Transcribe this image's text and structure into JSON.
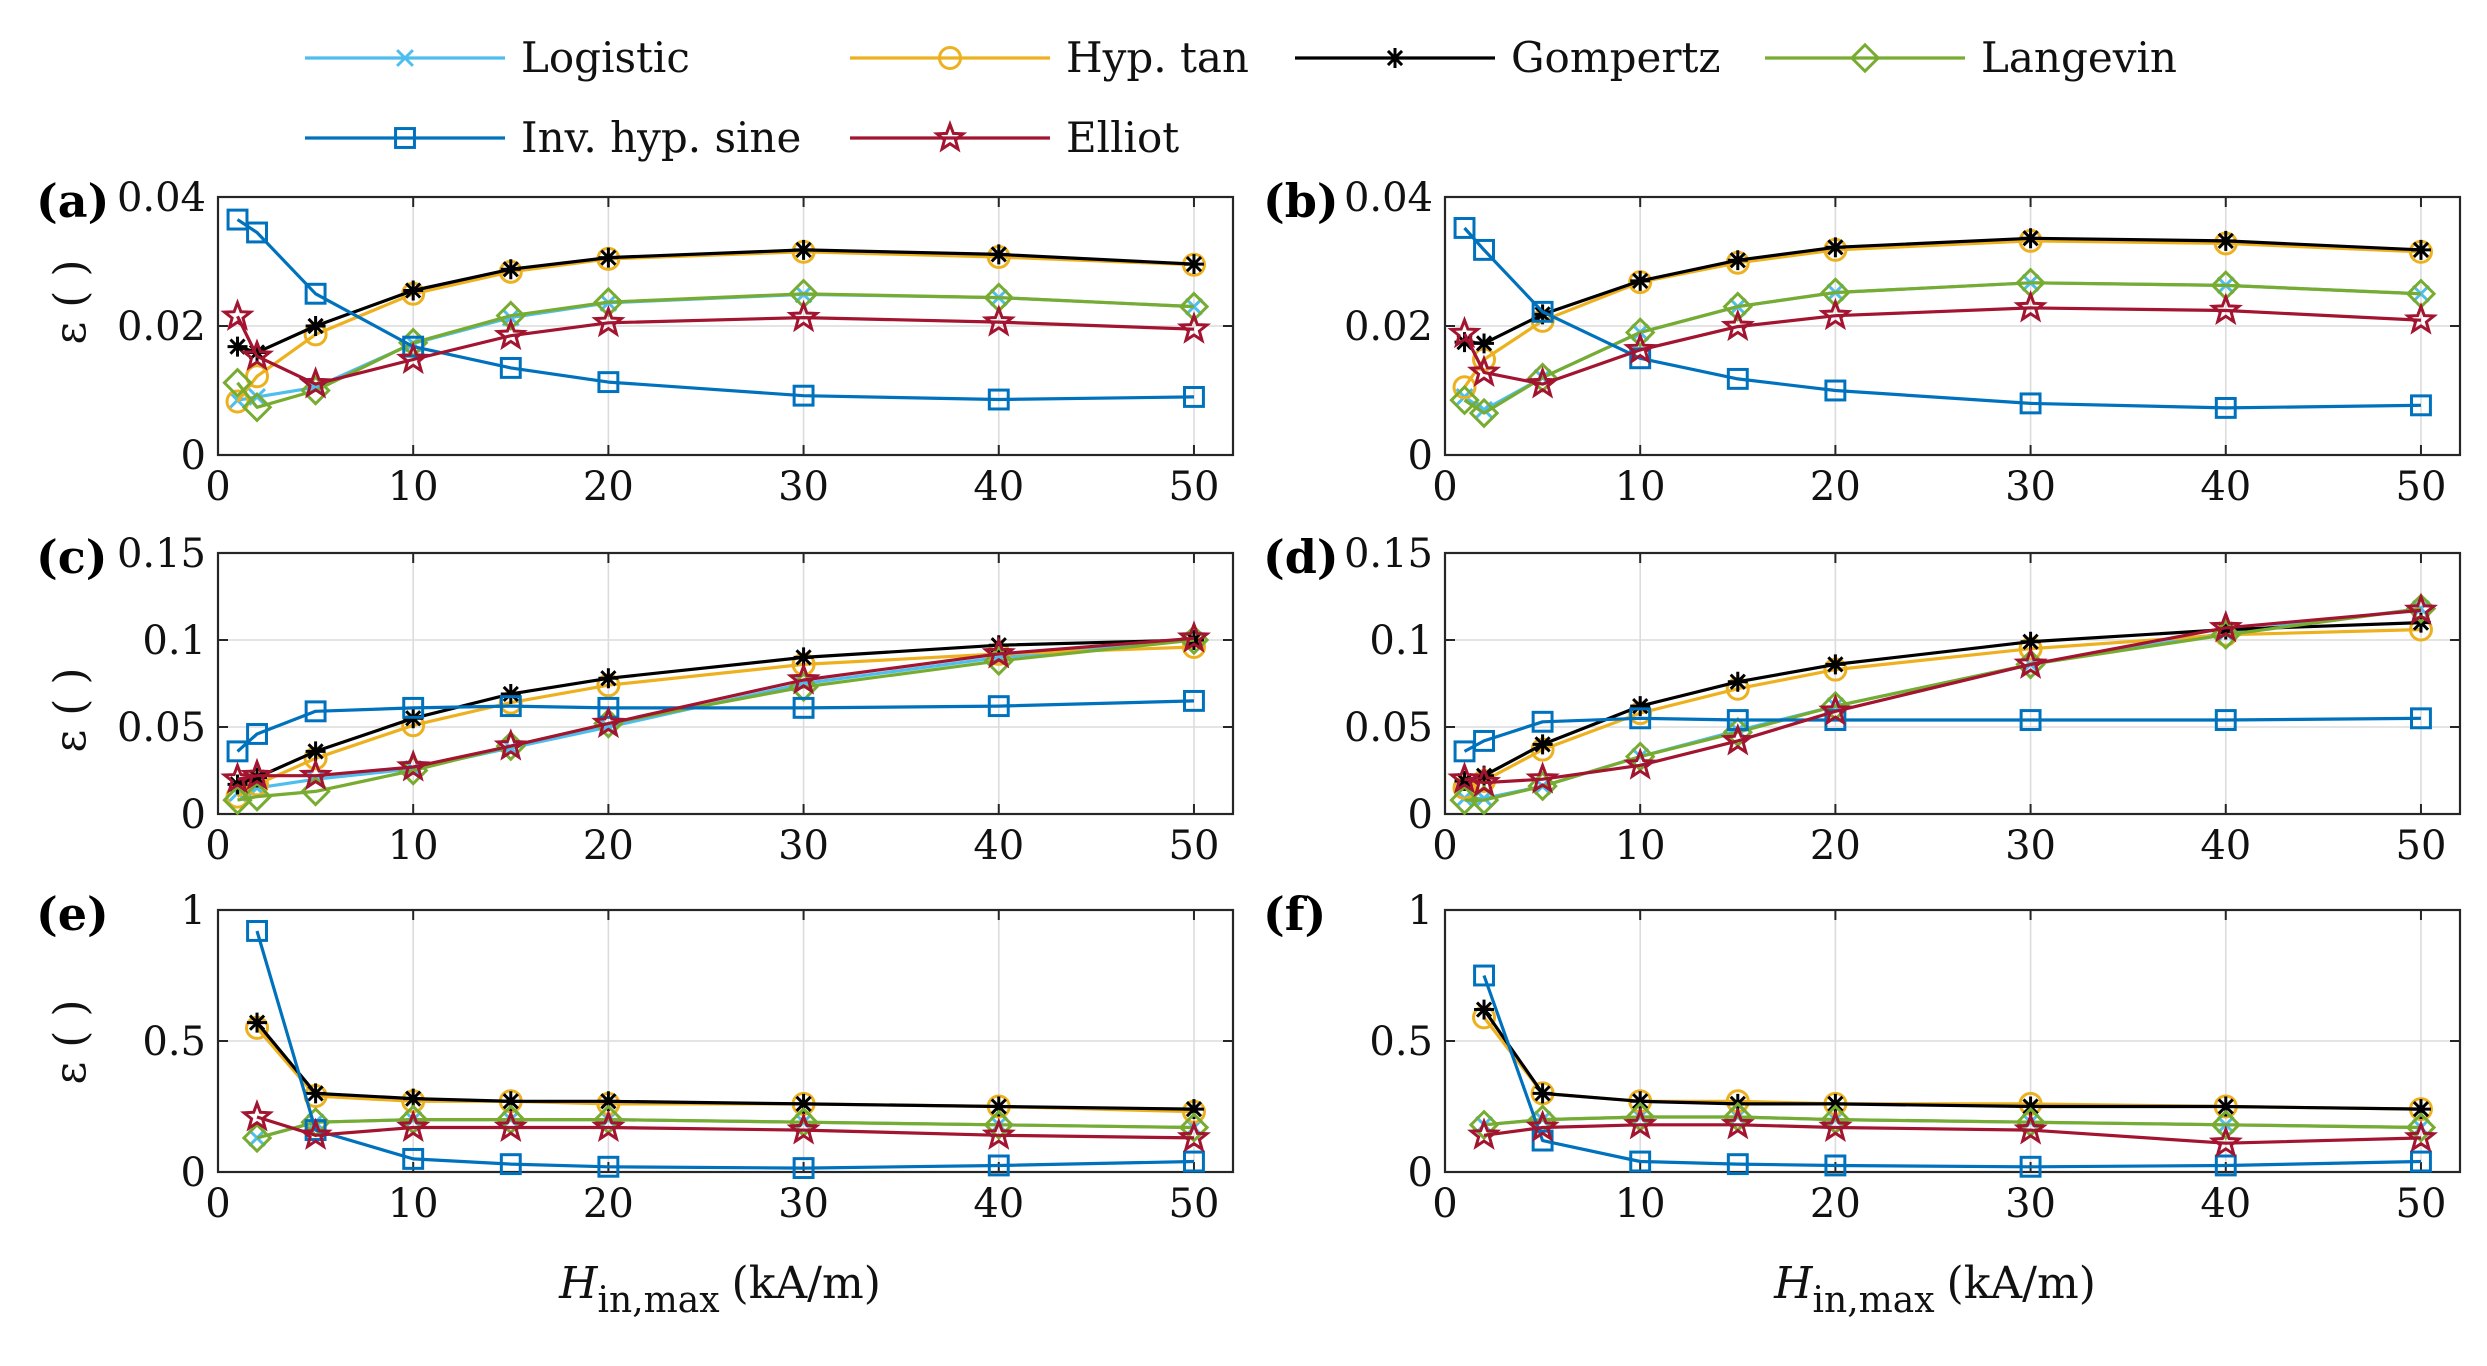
{
  "legend": [
    {
      "name": "Logistic",
      "color": "#4DBEEE",
      "marker": "x-icon"
    },
    {
      "name": "Hyp. tan",
      "color": "#EDB120",
      "marker": "circle-icon"
    },
    {
      "name": "Gompertz",
      "color": "#000000",
      "marker": "asterisk-icon"
    },
    {
      "name": "Langevin",
      "color": "#77AC30",
      "marker": "diamond-icon"
    },
    {
      "name": "Inv. hyp. sine",
      "color": "#0072BD",
      "marker": "square-icon"
    },
    {
      "name": "Elliot",
      "color": "#A2142F",
      "marker": "pentagram-icon"
    }
  ],
  "x_axis_title": {
    "main": "H",
    "sub": "in,max",
    "unit": "(kA/m)"
  },
  "y_axis_title": "ε ( )",
  "chart_data": [
    {
      "panel": "(a)",
      "type": "line",
      "xlim": [
        0,
        52
      ],
      "ylim": [
        0,
        0.04
      ],
      "xticks": [
        "0",
        "10",
        "20",
        "30",
        "40",
        "50"
      ],
      "yticks": [
        "0",
        "0.02",
        "0.04"
      ],
      "series": [
        {
          "name": "Logistic",
          "x": [
            1,
            2,
            5,
            10,
            15,
            20,
            30,
            40,
            50
          ],
          "y": [
            0.0085,
            0.009,
            0.0105,
            0.0173,
            0.0213,
            0.0236,
            0.0249,
            0.0244,
            0.023
          ]
        },
        {
          "name": "Hyp. tan",
          "x": [
            1,
            2,
            5,
            10,
            15,
            20,
            30,
            40,
            50
          ],
          "y": [
            0.0083,
            0.0122,
            0.0187,
            0.025,
            0.0284,
            0.0304,
            0.0315,
            0.0307,
            0.0295
          ]
        },
        {
          "name": "Gompertz",
          "x": [
            1,
            2,
            5,
            10,
            15,
            20,
            30,
            40,
            50
          ],
          "y": [
            0.0168,
            0.0159,
            0.02,
            0.0255,
            0.0288,
            0.0306,
            0.0318,
            0.0311,
            0.0296
          ]
        },
        {
          "name": "Langevin",
          "x": [
            1,
            2,
            5,
            10,
            15,
            20,
            30,
            40,
            50
          ],
          "y": [
            0.0112,
            0.0074,
            0.01,
            0.0174,
            0.0216,
            0.0237,
            0.025,
            0.0244,
            0.023
          ]
        },
        {
          "name": "Inv. hyp. sine",
          "x": [
            1,
            2,
            5,
            10,
            15,
            20,
            30,
            40,
            50
          ],
          "y": [
            0.0365,
            0.0345,
            0.025,
            0.0168,
            0.0135,
            0.0113,
            0.0092,
            0.0086,
            0.009
          ]
        },
        {
          "name": "Elliot",
          "x": [
            1,
            2,
            5,
            10,
            15,
            20,
            30,
            40,
            50
          ],
          "y": [
            0.0215,
            0.0153,
            0.011,
            0.0148,
            0.0185,
            0.0205,
            0.0213,
            0.0206,
            0.0195
          ]
        }
      ]
    },
    {
      "panel": "(b)",
      "type": "line",
      "xlim": [
        0,
        52
      ],
      "ylim": [
        0,
        0.04
      ],
      "xticks": [
        "0",
        "10",
        "20",
        "30",
        "40",
        "50"
      ],
      "yticks": [
        "0",
        "0.02",
        "0.04"
      ],
      "series": [
        {
          "name": "Logistic",
          "x": [
            1,
            2,
            5,
            10,
            15,
            20,
            30,
            40,
            50
          ],
          "y": [
            0.009,
            0.007,
            0.012,
            0.019,
            0.023,
            0.0252,
            0.0267,
            0.0263,
            0.025
          ]
        },
        {
          "name": "Hyp. tan",
          "x": [
            1,
            2,
            5,
            10,
            15,
            20,
            30,
            40,
            50
          ],
          "y": [
            0.0105,
            0.0148,
            0.0208,
            0.0268,
            0.0298,
            0.0318,
            0.0332,
            0.0328,
            0.0315
          ]
        },
        {
          "name": "Gompertz",
          "x": [
            1,
            2,
            5,
            10,
            15,
            20,
            30,
            40,
            50
          ],
          "y": [
            0.0175,
            0.0173,
            0.0218,
            0.027,
            0.0302,
            0.0322,
            0.0336,
            0.0332,
            0.0318
          ]
        },
        {
          "name": "Langevin",
          "x": [
            1,
            2,
            5,
            10,
            15,
            20,
            30,
            40,
            50
          ],
          "y": [
            0.0085,
            0.0065,
            0.012,
            0.019,
            0.023,
            0.0252,
            0.0267,
            0.0263,
            0.025
          ]
        },
        {
          "name": "Inv. hyp. sine",
          "x": [
            1,
            2,
            5,
            10,
            15,
            20,
            30,
            40,
            50
          ],
          "y": [
            0.0352,
            0.0318,
            0.0222,
            0.015,
            0.0118,
            0.01,
            0.008,
            0.0073,
            0.0077
          ]
        },
        {
          "name": "Elliot",
          "x": [
            1,
            2,
            5,
            10,
            15,
            20,
            30,
            40,
            50
          ],
          "y": [
            0.0188,
            0.0128,
            0.011,
            0.0163,
            0.0199,
            0.0216,
            0.0228,
            0.0224,
            0.0209
          ]
        }
      ]
    },
    {
      "panel": "(c)",
      "type": "line",
      "xlim": [
        0,
        52
      ],
      "ylim": [
        0,
        0.15
      ],
      "xticks": [
        "0",
        "10",
        "20",
        "30",
        "40",
        "50"
      ],
      "yticks": [
        "0",
        "0.05",
        "0.1",
        "0.15"
      ],
      "series": [
        {
          "name": "Logistic",
          "x": [
            1,
            2,
            5,
            10,
            15,
            20,
            30,
            40,
            50
          ],
          "y": [
            0.012,
            0.015,
            0.02,
            0.026,
            0.038,
            0.05,
            0.075,
            0.09,
            0.1
          ]
        },
        {
          "name": "Hyp. tan",
          "x": [
            1,
            2,
            5,
            10,
            15,
            20,
            30,
            40,
            50
          ],
          "y": [
            0.01,
            0.017,
            0.032,
            0.051,
            0.064,
            0.074,
            0.086,
            0.092,
            0.096
          ]
        },
        {
          "name": "Gompertz",
          "x": [
            1,
            2,
            5,
            10,
            15,
            20,
            30,
            40,
            50
          ],
          "y": [
            0.017,
            0.021,
            0.036,
            0.055,
            0.069,
            0.078,
            0.09,
            0.097,
            0.1
          ]
        },
        {
          "name": "Langevin",
          "x": [
            1,
            2,
            5,
            10,
            15,
            20,
            30,
            40,
            50
          ],
          "y": [
            0.008,
            0.01,
            0.013,
            0.025,
            0.039,
            0.052,
            0.073,
            0.088,
            0.1
          ]
        },
        {
          "name": "Inv. hyp. sine",
          "x": [
            1,
            2,
            5,
            10,
            15,
            20,
            30,
            40,
            50
          ],
          "y": [
            0.036,
            0.046,
            0.059,
            0.061,
            0.062,
            0.061,
            0.061,
            0.062,
            0.065
          ]
        },
        {
          "name": "Elliot",
          "x": [
            1,
            2,
            5,
            10,
            15,
            20,
            30,
            40,
            50
          ],
          "y": [
            0.02,
            0.022,
            0.022,
            0.027,
            0.039,
            0.052,
            0.077,
            0.092,
            0.101
          ]
        }
      ]
    },
    {
      "panel": "(d)",
      "type": "line",
      "xlim": [
        0,
        52
      ],
      "ylim": [
        0,
        0.15
      ],
      "xticks": [
        "0",
        "10",
        "20",
        "30",
        "40",
        "50"
      ],
      "yticks": [
        "0",
        "0.05",
        "0.1",
        "0.15"
      ],
      "series": [
        {
          "name": "Logistic",
          "x": [
            1,
            2,
            5,
            10,
            15,
            20,
            30,
            40,
            50
          ],
          "y": [
            0.009,
            0.009,
            0.016,
            0.033,
            0.048,
            0.062,
            0.086,
            0.104,
            0.118
          ]
        },
        {
          "name": "Hyp. tan",
          "x": [
            1,
            2,
            5,
            10,
            15,
            20,
            30,
            40,
            50
          ],
          "y": [
            0.015,
            0.019,
            0.037,
            0.058,
            0.072,
            0.083,
            0.095,
            0.103,
            0.106
          ]
        },
        {
          "name": "Gompertz",
          "x": [
            1,
            2,
            5,
            10,
            15,
            20,
            30,
            40,
            50
          ],
          "y": [
            0.019,
            0.022,
            0.04,
            0.062,
            0.076,
            0.086,
            0.099,
            0.106,
            0.11
          ]
        },
        {
          "name": "Langevin",
          "x": [
            1,
            2,
            5,
            10,
            15,
            20,
            30,
            40,
            50
          ],
          "y": [
            0.008,
            0.008,
            0.016,
            0.033,
            0.047,
            0.062,
            0.086,
            0.103,
            0.118
          ]
        },
        {
          "name": "Inv. hyp. sine",
          "x": [
            1,
            2,
            5,
            10,
            15,
            20,
            30,
            40,
            50
          ],
          "y": [
            0.036,
            0.042,
            0.053,
            0.055,
            0.054,
            0.054,
            0.054,
            0.054,
            0.055
          ]
        },
        {
          "name": "Elliot",
          "x": [
            1,
            2,
            5,
            10,
            15,
            20,
            30,
            40,
            50
          ],
          "y": [
            0.02,
            0.018,
            0.02,
            0.028,
            0.042,
            0.059,
            0.086,
            0.107,
            0.117
          ]
        }
      ]
    },
    {
      "panel": "(e)",
      "type": "line",
      "xlim": [
        0,
        52
      ],
      "ylim": [
        0,
        1
      ],
      "xticks": [
        "0",
        "10",
        "20",
        "30",
        "40",
        "50"
      ],
      "yticks": [
        "0",
        "0.5",
        "1"
      ],
      "series": [
        {
          "name": "Logistic",
          "x": [
            2,
            5,
            10,
            15,
            20,
            30,
            40,
            50
          ],
          "y": [
            0.13,
            0.19,
            0.2,
            0.2,
            0.2,
            0.19,
            0.18,
            0.17
          ]
        },
        {
          "name": "Hyp. tan",
          "x": [
            2,
            5,
            10,
            15,
            20,
            30,
            40,
            50
          ],
          "y": [
            0.55,
            0.29,
            0.27,
            0.27,
            0.26,
            0.26,
            0.25,
            0.23
          ]
        },
        {
          "name": "Gompertz",
          "x": [
            2,
            5,
            10,
            15,
            20,
            30,
            40,
            50
          ],
          "y": [
            0.57,
            0.3,
            0.28,
            0.27,
            0.27,
            0.26,
            0.25,
            0.24
          ]
        },
        {
          "name": "Langevin",
          "x": [
            2,
            5,
            10,
            15,
            20,
            30,
            40,
            50
          ],
          "y": [
            0.13,
            0.19,
            0.2,
            0.2,
            0.2,
            0.19,
            0.18,
            0.17
          ]
        },
        {
          "name": "Inv. hyp. sine",
          "x": [
            2,
            5,
            10,
            15,
            20,
            30,
            40,
            50
          ],
          "y": [
            0.92,
            0.16,
            0.05,
            0.03,
            0.02,
            0.015,
            0.025,
            0.04
          ]
        },
        {
          "name": "Elliot",
          "x": [
            2,
            5,
            10,
            15,
            20,
            30,
            40,
            50
          ],
          "y": [
            0.21,
            0.14,
            0.17,
            0.17,
            0.17,
            0.16,
            0.14,
            0.13
          ]
        }
      ]
    },
    {
      "panel": "(f)",
      "type": "line",
      "xlim": [
        0,
        52
      ],
      "ylim": [
        0,
        1
      ],
      "xticks": [
        "0",
        "10",
        "20",
        "30",
        "40",
        "50"
      ],
      "yticks": [
        "0",
        "0.5",
        "1"
      ],
      "series": [
        {
          "name": "Logistic",
          "x": [
            2,
            5,
            10,
            15,
            20,
            30,
            40,
            50
          ],
          "y": [
            0.18,
            0.2,
            0.21,
            0.21,
            0.2,
            0.19,
            0.18,
            0.17
          ]
        },
        {
          "name": "Hyp. tan",
          "x": [
            2,
            5,
            10,
            15,
            20,
            30,
            40,
            50
          ],
          "y": [
            0.59,
            0.3,
            0.27,
            0.27,
            0.26,
            0.26,
            0.25,
            0.24
          ]
        },
        {
          "name": "Gompertz",
          "x": [
            2,
            5,
            10,
            15,
            20,
            30,
            40,
            50
          ],
          "y": [
            0.62,
            0.3,
            0.27,
            0.26,
            0.26,
            0.25,
            0.25,
            0.24
          ]
        },
        {
          "name": "Langevin",
          "x": [
            2,
            5,
            10,
            15,
            20,
            30,
            40,
            50
          ],
          "y": [
            0.18,
            0.2,
            0.21,
            0.21,
            0.2,
            0.19,
            0.18,
            0.17
          ]
        },
        {
          "name": "Inv. hyp. sine",
          "x": [
            2,
            5,
            10,
            15,
            20,
            30,
            40,
            50
          ],
          "y": [
            0.75,
            0.12,
            0.04,
            0.03,
            0.025,
            0.02,
            0.025,
            0.04
          ]
        },
        {
          "name": "Elliot",
          "x": [
            2,
            5,
            10,
            15,
            20,
            30,
            40,
            50
          ],
          "y": [
            0.14,
            0.17,
            0.18,
            0.18,
            0.17,
            0.16,
            0.11,
            0.13
          ]
        }
      ]
    }
  ]
}
